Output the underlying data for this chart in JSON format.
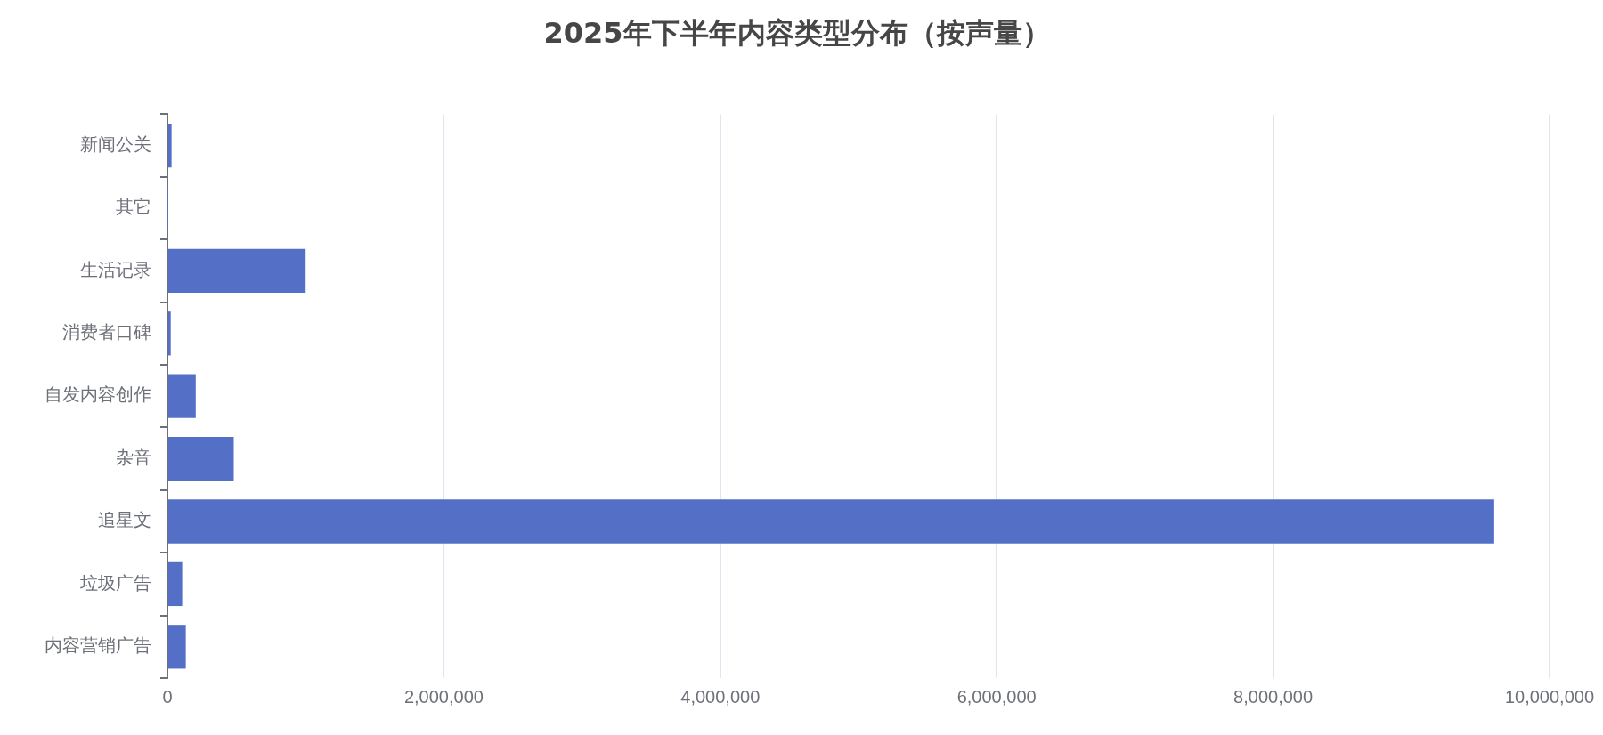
{
  "chart_data": {
    "type": "bar",
    "orientation": "horizontal",
    "title": "2025年下半年内容类型分布（按声量）",
    "categories": [
      "新闻公关",
      "其它",
      "生活记录",
      "消费者口碑",
      "自发内容创作",
      "杂音",
      "追星文",
      "垃圾广告",
      "内容营销广告"
    ],
    "values": [
      30000,
      2000,
      1000000,
      24000,
      205000,
      480000,
      9600000,
      107000,
      133000
    ],
    "color": "#5470c6",
    "xlim": [
      0,
      10000000
    ],
    "xticks": [
      0,
      {
        "value": 2000000,
        "label": "2,000,000"
      },
      {
        "value": 4000000,
        "label": "4,000,000"
      },
      {
        "value": 6000000,
        "label": "6,000,000"
      },
      {
        "value": 8000000,
        "label": "8,000,000"
      },
      {
        "value": 10000000,
        "label": "10,000,000"
      }
    ],
    "grid": "x"
  }
}
